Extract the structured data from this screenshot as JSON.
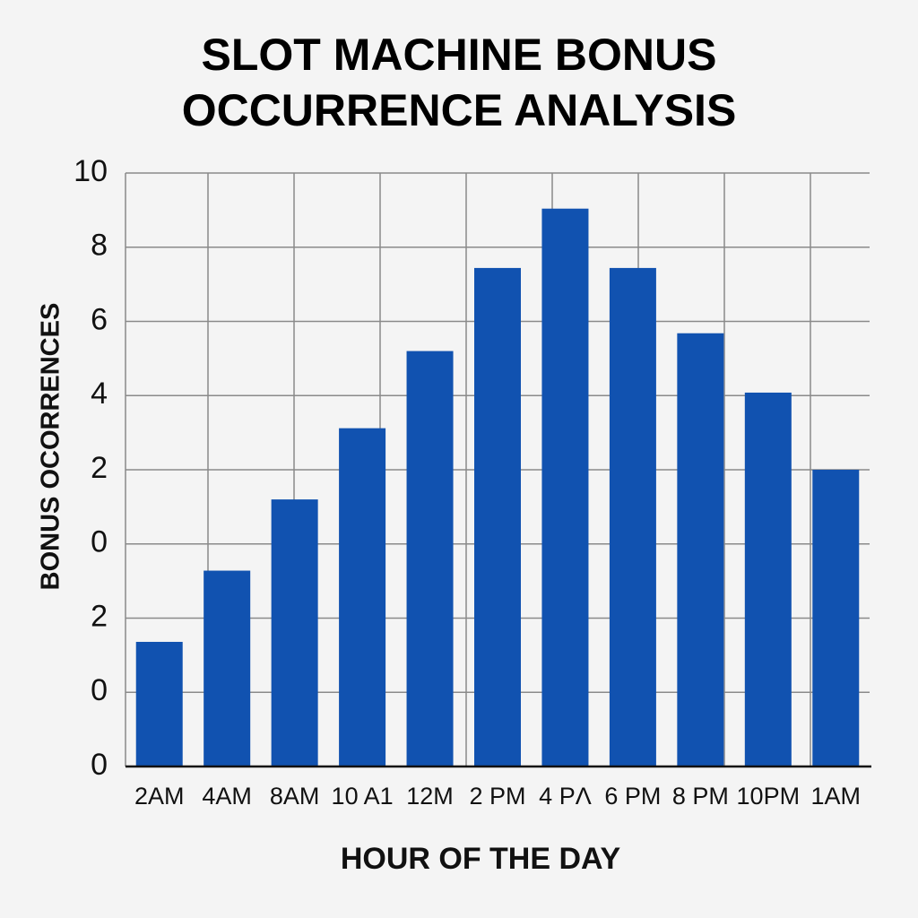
{
  "chart_data": {
    "type": "bar",
    "title": "SLOT MACHINE BONUS OCCURRENCE ANALYSIS",
    "x_label": "HOUR OF THE DAY",
    "y_label": "BONUS OCORRENCES",
    "categories": [
      "2AM",
      "4AM",
      "8AM",
      "10 A1",
      "12M",
      "2 PM",
      "4 PΛ",
      "6 PM",
      "8 PM",
      "10PM",
      "1AM"
    ],
    "values": [
      2.1,
      3.3,
      4.5,
      5.7,
      7.0,
      8.4,
      9.4,
      8.4,
      7.3,
      6.3,
      5.0
    ],
    "color": "#1152b0",
    "ylim": [
      0,
      10
    ],
    "yticks": [
      0,
      {
        "value": 1.25,
        "label": "0"
      },
      {
        "value": 2.5,
        "label": "2"
      },
      {
        "value": 3.75,
        "label": "0"
      },
      {
        "value": 5,
        "label": "2"
      },
      {
        "value": 6.25,
        "label": "4"
      },
      {
        "value": 7.5,
        "label": "6"
      },
      {
        "value": 8.75,
        "label": "8"
      },
      10
    ],
    "grid": true
  }
}
